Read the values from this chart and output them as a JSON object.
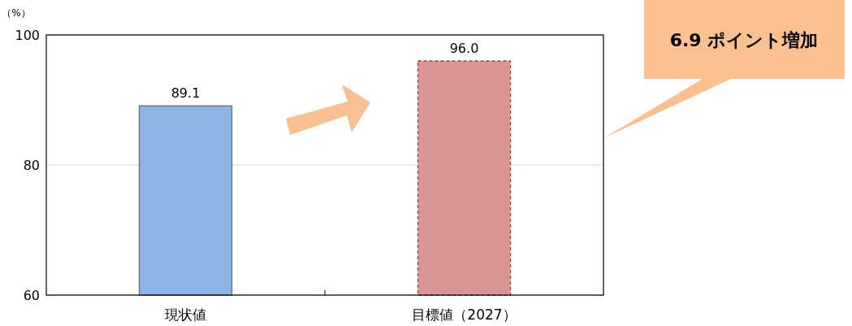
{
  "chart_data": {
    "type": "bar",
    "ylabel": "（%）",
    "categories": [
      "現状値",
      "目標値（2027）"
    ],
    "values": [
      89.1,
      96.0
    ],
    "colors": [
      "#8eb4e3",
      "#d99694"
    ],
    "ylim": [
      60,
      100
    ],
    "yticks": [
      60,
      80,
      100
    ],
    "grid": "y",
    "value_labels": [
      "89.1",
      "96.0"
    ],
    "annotations": [
      "6.9 ポイント増加"
    ]
  }
}
